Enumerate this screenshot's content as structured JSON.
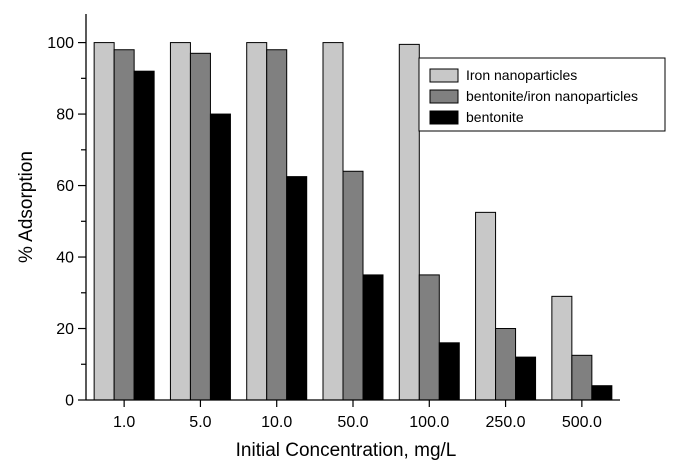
{
  "chart_data": {
    "type": "bar",
    "title": "",
    "xlabel": "Initial Concentration, mg/L",
    "ylabel": "% Adsorption",
    "ylim": [
      0,
      108
    ],
    "yticks": [
      0,
      20,
      40,
      60,
      80,
      100
    ],
    "categories": [
      "1.0",
      "5.0",
      "10.0",
      "50.0",
      "100.0",
      "250.0",
      "500.0"
    ],
    "series": [
      {
        "name": "Iron nanoparticles",
        "color": "#c8c8c8",
        "values": [
          100,
          100,
          100,
          100,
          99.5,
          52.5,
          29
        ]
      },
      {
        "name": "bentonite/iron nanoparticles",
        "color": "#808080",
        "values": [
          98,
          97,
          98,
          64,
          35,
          20,
          12.5
        ]
      },
      {
        "name": "bentonite",
        "color": "#000000",
        "values": [
          92,
          80,
          62.5,
          35,
          16,
          12,
          4
        ]
      }
    ],
    "grid": false,
    "legend_position": "top-right"
  }
}
